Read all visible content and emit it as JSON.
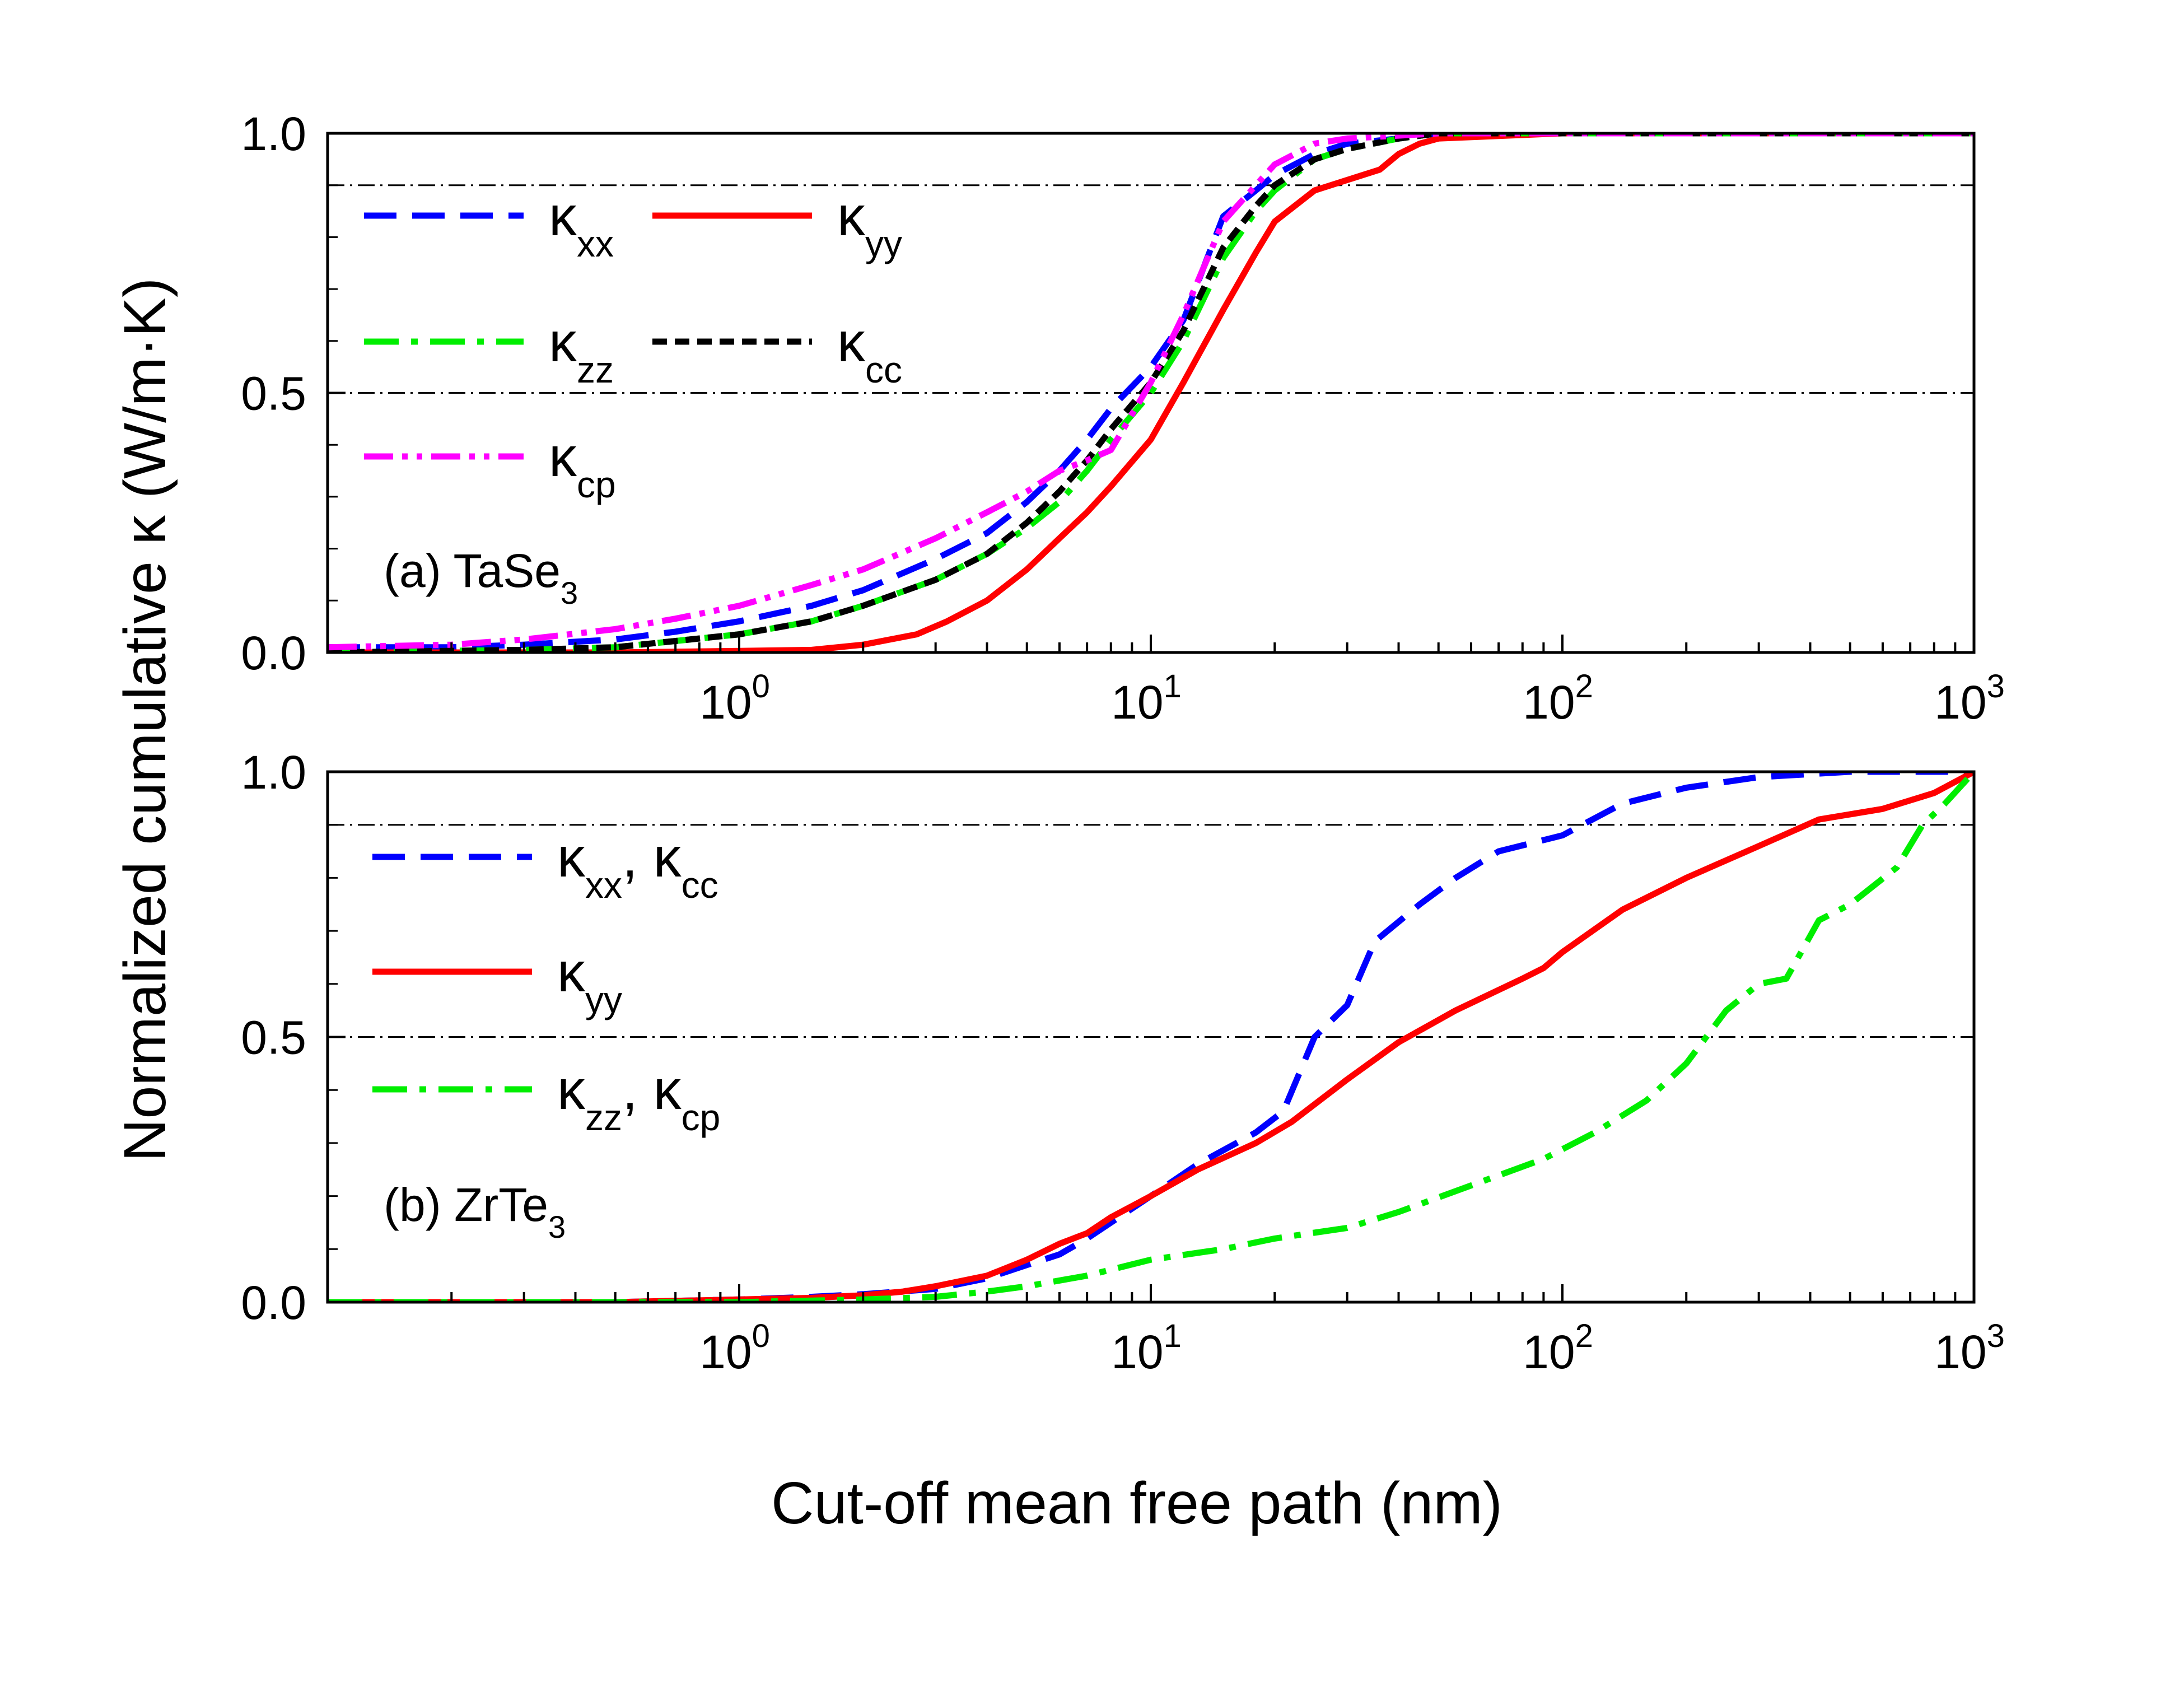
{
  "chart_data": [
    {
      "type": "line",
      "panel": "a",
      "label_prefix": "(a) TaSe",
      "label_sub": "3",
      "xscale": "log",
      "xlim": [
        0.1,
        1000
      ],
      "ylim": [
        0,
        1.0
      ],
      "xlabel": "Cut-off mean free path (nm)",
      "ylabel": "Normalized cumulative κ (W/m·K)",
      "legend_position": "top-left",
      "x_ticks": [
        {
          "value": 1,
          "base": "10",
          "exp": "0"
        },
        {
          "value": 10,
          "base": "10",
          "exp": "1"
        },
        {
          "value": 100,
          "base": "10",
          "exp": "2"
        },
        {
          "value": 1000,
          "base": "10",
          "exp": "3"
        }
      ],
      "y_ticks": [
        {
          "value": 0.0,
          "label": "0.0"
        },
        {
          "value": 0.5,
          "label": "0.5"
        },
        {
          "value": 1.0,
          "label": "1.0"
        }
      ],
      "reference_lines": [
        0.5,
        0.9
      ],
      "series": [
        {
          "name": "κxx",
          "sym": "κ",
          "sub": "xx",
          "color": "#0000ff",
          "style": "dash",
          "x": [
            0.1,
            0.2,
            0.3,
            0.5,
            0.7,
            1.0,
            1.5,
            2.0,
            3.0,
            4.0,
            5.0,
            6.0,
            7.0,
            8.0,
            10,
            12,
            15,
            18,
            20,
            25,
            30,
            40,
            50,
            100,
            1000
          ],
          "y": [
            0.01,
            0.01,
            0.015,
            0.025,
            0.04,
            0.06,
            0.09,
            0.12,
            0.18,
            0.23,
            0.29,
            0.35,
            0.41,
            0.47,
            0.55,
            0.64,
            0.84,
            0.89,
            0.92,
            0.96,
            0.98,
            0.99,
            1.0,
            1.0,
            1.0
          ]
        },
        {
          "name": "κyy",
          "sym": "κ",
          "sub": "yy",
          "color": "#ff0000",
          "style": "solid",
          "x": [
            0.1,
            0.5,
            1.0,
            1.5,
            2.0,
            2.7,
            3.2,
            4.0,
            5.0,
            6.0,
            7.0,
            8.0,
            10,
            12,
            15,
            18,
            20,
            25,
            30,
            36,
            40,
            45,
            50,
            100,
            1000
          ],
          "y": [
            0.0,
            0.0,
            0.003,
            0.005,
            0.015,
            0.035,
            0.06,
            0.1,
            0.16,
            0.22,
            0.27,
            0.32,
            0.41,
            0.52,
            0.66,
            0.77,
            0.83,
            0.89,
            0.91,
            0.93,
            0.96,
            0.98,
            0.99,
            1.0,
            1.0
          ]
        },
        {
          "name": "κzz",
          "sym": "κ",
          "sub": "zz",
          "color": "#00ee00",
          "style": "dashdot",
          "x": [
            0.1,
            0.3,
            0.5,
            1.0,
            1.5,
            2.0,
            3.0,
            4.0,
            5.0,
            6.0,
            7.0,
            8.0,
            10,
            12,
            15,
            18,
            20,
            25,
            30,
            40,
            50,
            100,
            1000
          ],
          "y": [
            0.0,
            0.005,
            0.01,
            0.035,
            0.06,
            0.09,
            0.14,
            0.19,
            0.24,
            0.29,
            0.35,
            0.41,
            0.5,
            0.6,
            0.76,
            0.85,
            0.89,
            0.95,
            0.97,
            0.99,
            1.0,
            1.0,
            1.0
          ]
        },
        {
          "name": "κcc",
          "sym": "κ",
          "sub": "cc",
          "color": "#000000",
          "style": "shortdash",
          "x": [
            0.1,
            0.3,
            0.5,
            1.0,
            1.5,
            2.0,
            3.0,
            4.0,
            5.0,
            6.0,
            7.0,
            8.0,
            10,
            12,
            15,
            18,
            20,
            25,
            30,
            40,
            50,
            100,
            1000
          ],
          "y": [
            0.0,
            0.005,
            0.01,
            0.035,
            0.06,
            0.09,
            0.14,
            0.19,
            0.25,
            0.31,
            0.37,
            0.43,
            0.52,
            0.62,
            0.78,
            0.86,
            0.9,
            0.95,
            0.97,
            0.99,
            1.0,
            1.0,
            1.0
          ]
        },
        {
          "name": "κcp",
          "sym": "κ",
          "sub": "cp",
          "color": "#ff00ff",
          "style": "dashdotdot",
          "x": [
            0.1,
            0.2,
            0.3,
            0.5,
            0.7,
            1.0,
            1.5,
            2.0,
            3.0,
            4.0,
            5.0,
            6.0,
            7.0,
            8.0,
            10,
            12,
            15,
            18,
            20,
            25,
            30,
            50,
            1000
          ],
          "y": [
            0.01,
            0.015,
            0.025,
            0.045,
            0.065,
            0.09,
            0.13,
            0.16,
            0.22,
            0.27,
            0.31,
            0.35,
            0.37,
            0.39,
            0.52,
            0.65,
            0.83,
            0.9,
            0.94,
            0.98,
            0.99,
            1.0,
            1.0
          ]
        }
      ],
      "legend_layout": [
        [
          0,
          1
        ],
        [
          2,
          3
        ],
        [
          4
        ]
      ]
    },
    {
      "type": "line",
      "panel": "b",
      "label_prefix": "(b) ZrTe",
      "label_sub": "3",
      "xscale": "log",
      "xlim": [
        0.1,
        1000
      ],
      "ylim": [
        0,
        1.0
      ],
      "xlabel": "Cut-off mean free path (nm)",
      "ylabel": "Normalized cumulative κ (W/m·K)",
      "legend_position": "top-left",
      "x_ticks": [
        {
          "value": 1,
          "base": "10",
          "exp": "0"
        },
        {
          "value": 10,
          "base": "10",
          "exp": "1"
        },
        {
          "value": 100,
          "base": "10",
          "exp": "2"
        },
        {
          "value": 1000,
          "base": "10",
          "exp": "3"
        }
      ],
      "y_ticks": [
        {
          "value": 0.0,
          "label": "0.0"
        },
        {
          "value": 0.5,
          "label": "0.5"
        },
        {
          "value": 1.0,
          "label": "1.0"
        }
      ],
      "reference_lines": [
        0.5,
        0.9
      ],
      "series": [
        {
          "name": "κxx, κcc",
          "sym": "κ",
          "sub": "xx",
          "sym2": "κ",
          "sub2": "cc",
          "color": "#0000ff",
          "style": "dash",
          "x": [
            0.1,
            0.5,
            1.0,
            1.5,
            2.0,
            3.0,
            4.0,
            5.0,
            6.0,
            7.0,
            8.0,
            10,
            13,
            18,
            21,
            25,
            30,
            35,
            45,
            55,
            70,
            100,
            140,
            200,
            300,
            500,
            1000
          ],
          "y": [
            0.0,
            0.0,
            0.005,
            0.01,
            0.015,
            0.025,
            0.045,
            0.07,
            0.09,
            0.12,
            0.15,
            0.2,
            0.26,
            0.32,
            0.36,
            0.5,
            0.56,
            0.68,
            0.75,
            0.8,
            0.85,
            0.88,
            0.94,
            0.97,
            0.99,
            1.0,
            1.0
          ]
        },
        {
          "name": "κyy",
          "sym": "κ",
          "sub": "yy",
          "color": "#ff0000",
          "style": "solid",
          "x": [
            0.1,
            0.5,
            1.0,
            1.5,
            2.0,
            2.5,
            3.0,
            4.0,
            5.0,
            6.0,
            7.0,
            8.0,
            10,
            13,
            18,
            22,
            30,
            40,
            55,
            80,
            90,
            100,
            140,
            200,
            300,
            420,
            600,
            800,
            1000
          ],
          "y": [
            0.0,
            0.0,
            0.005,
            0.008,
            0.013,
            0.02,
            0.03,
            0.05,
            0.08,
            0.11,
            0.13,
            0.16,
            0.2,
            0.25,
            0.3,
            0.34,
            0.42,
            0.49,
            0.55,
            0.61,
            0.63,
            0.66,
            0.74,
            0.8,
            0.86,
            0.91,
            0.93,
            0.96,
            1.0
          ]
        },
        {
          "name": "κzz, κcp",
          "sym": "κ",
          "sub": "zz",
          "sym2": "κ",
          "sub2": "cp",
          "color": "#00ee00",
          "style": "dashdot",
          "x": [
            0.1,
            0.5,
            1.0,
            2.0,
            3.0,
            4.0,
            5.0,
            7.0,
            10,
            15,
            20,
            30,
            40,
            60,
            90,
            120,
            160,
            200,
            250,
            300,
            350,
            420,
            500,
            650,
            750,
            850,
            1000
          ],
          "y": [
            0.0,
            0.0,
            0.0,
            0.005,
            0.01,
            0.02,
            0.03,
            0.05,
            0.08,
            0.1,
            0.12,
            0.14,
            0.17,
            0.22,
            0.27,
            0.32,
            0.38,
            0.45,
            0.55,
            0.6,
            0.61,
            0.72,
            0.75,
            0.82,
            0.9,
            0.94,
            1.0
          ]
        }
      ],
      "legend_layout": [
        [
          0
        ],
        [
          1
        ],
        [
          2
        ]
      ]
    }
  ]
}
